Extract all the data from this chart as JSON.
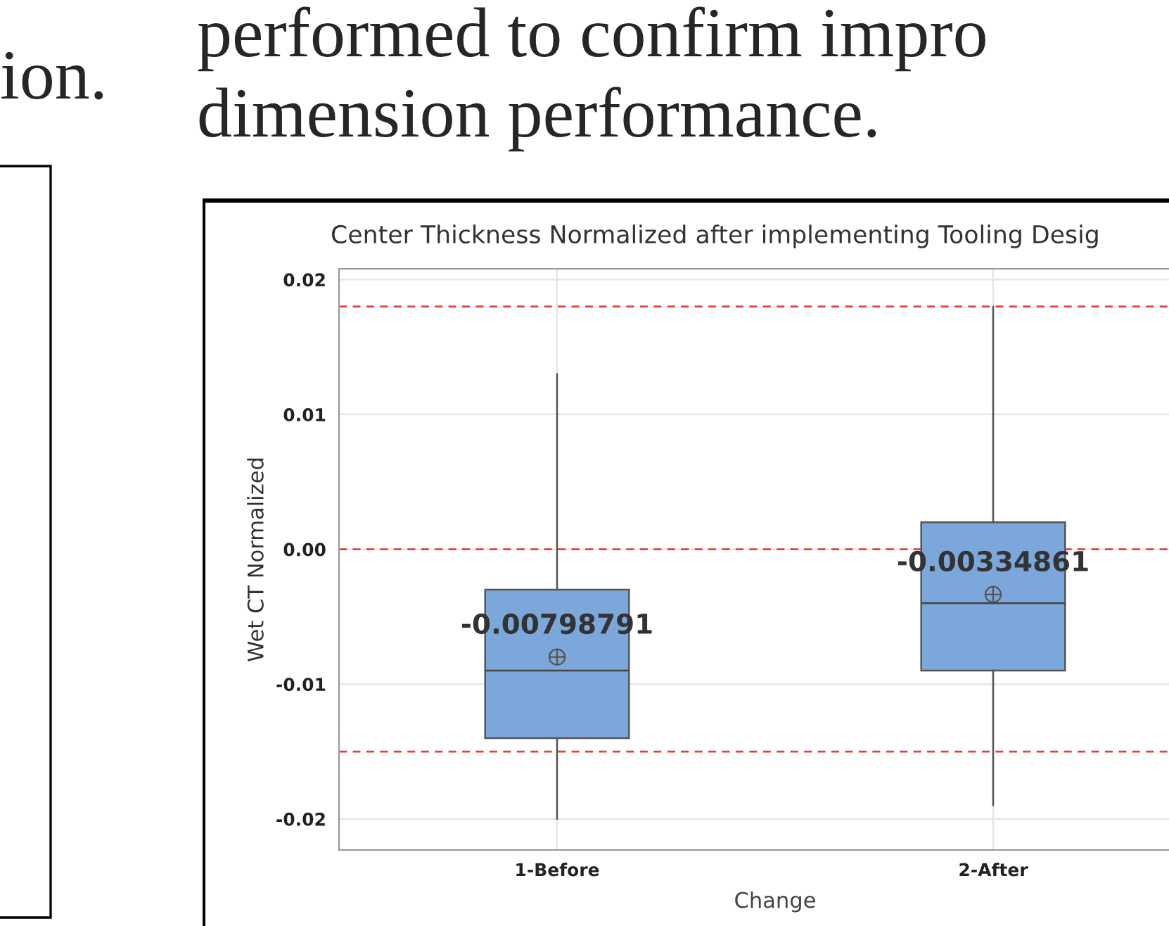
{
  "chart_data": {
    "type": "box",
    "title": "Center Thickness Normalized after implementing Tooling Desig",
    "xlabel": "Change",
    "ylabel": "Wet CT Normalized",
    "categories": [
      "1-Before",
      "2-After"
    ],
    "colors": [
      "#7ba7da",
      "#7ba7da"
    ],
    "boxes": [
      {
        "low": -0.02,
        "q1": -0.014,
        "median": -0.009,
        "q3": -0.003,
        "high": 0.013,
        "mean": -0.00798791
      },
      {
        "low": -0.019,
        "q1": -0.009,
        "median": -0.004,
        "q3": 0.002,
        "high": 0.018,
        "mean": -0.00334861
      }
    ],
    "ylim": [
      -0.0223,
      0.0208
    ],
    "yticks": [
      {
        "value": -0.02,
        "label": "-0.02"
      },
      {
        "value": -0.01,
        "label": "-0.01"
      },
      {
        "value": 0,
        "label": "0.00"
      },
      0.01,
      0.02
    ],
    "grid": true,
    "ref_lines": [
      {
        "axis": "y",
        "value": 0.018,
        "color": "#e8413c",
        "line_style": "dashed"
      },
      {
        "axis": "y",
        "value": 0,
        "color": "#e8413c",
        "line_style": "dashed"
      },
      {
        "axis": "y",
        "value": -0.015,
        "color": "#e8413c",
        "line_style": "dashed"
      }
    ],
    "annotations": [
      "-0.00798791",
      "-0.00334861",
      "performed to confirm impro",
      "dimension performance.",
      "ion."
    ]
  }
}
